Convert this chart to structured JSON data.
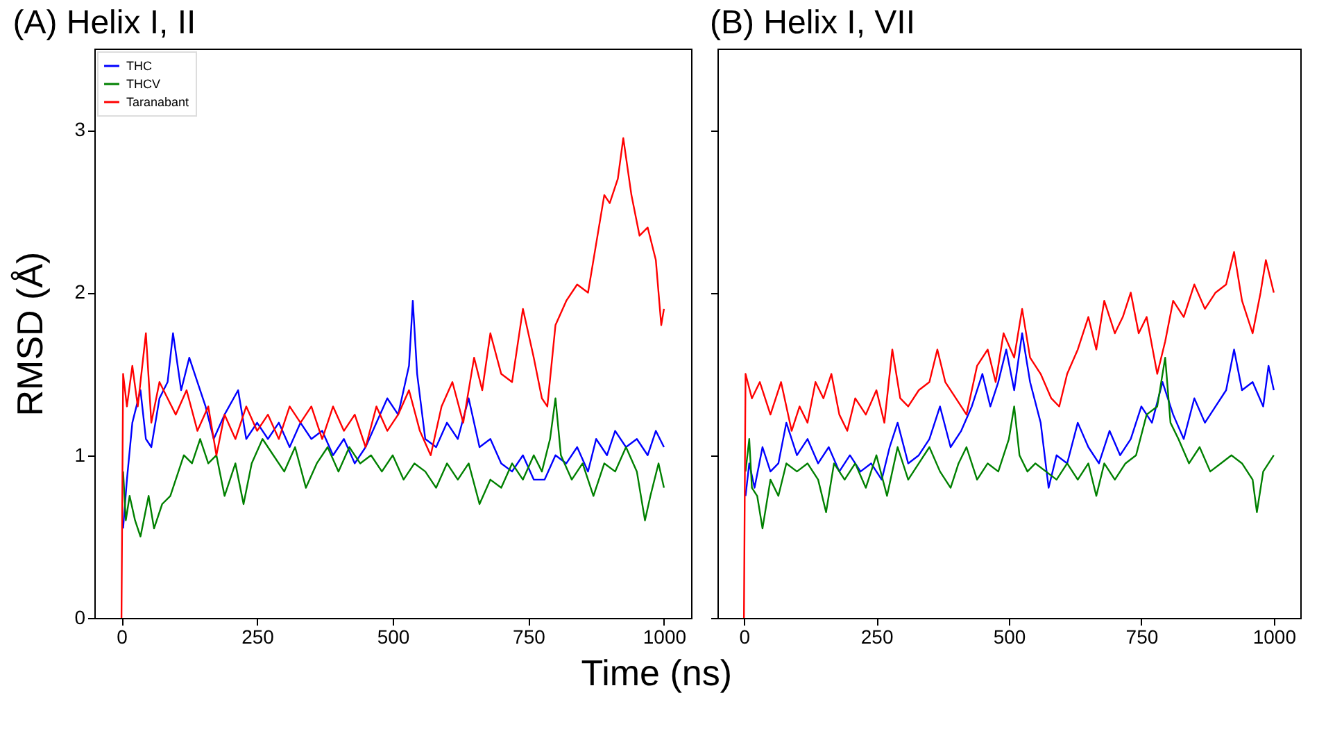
{
  "chart_data": [
    {
      "type": "line",
      "title": "(A) Helix I, II",
      "xlabel": "Time (ns)",
      "ylabel": "RMSD (Å)",
      "xlim": [
        -50,
        1050
      ],
      "ylim": [
        0,
        3.5
      ],
      "xticks": [
        0,
        250,
        500,
        750,
        1000
      ],
      "yticks": [
        0,
        1,
        2,
        3
      ],
      "legend": "top left",
      "series": [
        {
          "name": "THC",
          "color": "#0000ff",
          "x": [
            3,
            10,
            20,
            35,
            45,
            55,
            70,
            85,
            95,
            110,
            125,
            140,
            155,
            170,
            190,
            215,
            230,
            250,
            270,
            290,
            310,
            330,
            350,
            370,
            390,
            410,
            430,
            450,
            470,
            490,
            510,
            530,
            537,
            545,
            560,
            580,
            600,
            620,
            640,
            660,
            680,
            700,
            720,
            740,
            760,
            780,
            800,
            820,
            840,
            860,
            875,
            895,
            910,
            930,
            950,
            970,
            985,
            1000
          ],
          "values": [
            0.55,
            0.85,
            1.2,
            1.4,
            1.1,
            1.05,
            1.35,
            1.45,
            1.75,
            1.4,
            1.6,
            1.45,
            1.3,
            1.1,
            1.25,
            1.4,
            1.1,
            1.2,
            1.1,
            1.2,
            1.05,
            1.2,
            1.1,
            1.15,
            1.0,
            1.1,
            0.95,
            1.05,
            1.2,
            1.35,
            1.25,
            1.55,
            1.95,
            1.5,
            1.1,
            1.05,
            1.2,
            1.1,
            1.35,
            1.05,
            1.1,
            0.95,
            0.9,
            1.0,
            0.85,
            0.85,
            1.0,
            0.95,
            1.05,
            0.9,
            1.1,
            1.0,
            1.15,
            1.05,
            1.1,
            1.0,
            1.15,
            1.05
          ]
        },
        {
          "name": "THCV",
          "color": "#008000",
          "x": [
            3,
            8,
            15,
            25,
            35,
            50,
            60,
            75,
            90,
            100,
            115,
            130,
            145,
            160,
            175,
            190,
            210,
            225,
            240,
            260,
            280,
            300,
            320,
            340,
            360,
            380,
            400,
            420,
            440,
            460,
            480,
            500,
            520,
            540,
            560,
            580,
            600,
            620,
            640,
            660,
            680,
            700,
            720,
            740,
            760,
            775,
            790,
            800,
            810,
            830,
            850,
            870,
            890,
            910,
            930,
            950,
            965,
            975,
            990,
            1000
          ],
          "values": [
            0.9,
            0.6,
            0.75,
            0.6,
            0.5,
            0.75,
            0.55,
            0.7,
            0.75,
            0.85,
            1.0,
            0.95,
            1.1,
            0.95,
            1.0,
            0.75,
            0.95,
            0.7,
            0.95,
            1.1,
            1.0,
            0.9,
            1.05,
            0.8,
            0.95,
            1.05,
            0.9,
            1.05,
            0.95,
            1.0,
            0.9,
            1.0,
            0.85,
            0.95,
            0.9,
            0.8,
            0.95,
            0.85,
            0.95,
            0.7,
            0.85,
            0.8,
            0.95,
            0.85,
            1.0,
            0.9,
            1.1,
            1.35,
            1.0,
            0.85,
            0.95,
            0.75,
            0.95,
            0.9,
            1.05,
            0.9,
            0.6,
            0.75,
            0.95,
            0.8
          ]
        },
        {
          "name": "Taranabant",
          "color": "#ff0000",
          "x": [
            0,
            3,
            10,
            20,
            30,
            45,
            55,
            70,
            85,
            100,
            120,
            140,
            160,
            175,
            190,
            210,
            230,
            250,
            270,
            290,
            310,
            330,
            350,
            370,
            390,
            410,
            430,
            450,
            470,
            490,
            510,
            530,
            550,
            570,
            590,
            610,
            630,
            650,
            665,
            680,
            700,
            720,
            740,
            760,
            775,
            785,
            800,
            820,
            840,
            860,
            875,
            890,
            900,
            915,
            925,
            940,
            955,
            970,
            985,
            995,
            1000
          ],
          "values": [
            0,
            1.5,
            1.3,
            1.55,
            1.3,
            1.75,
            1.2,
            1.45,
            1.35,
            1.25,
            1.4,
            1.15,
            1.3,
            1.0,
            1.25,
            1.1,
            1.3,
            1.15,
            1.25,
            1.1,
            1.3,
            1.2,
            1.3,
            1.1,
            1.3,
            1.15,
            1.25,
            1.05,
            1.3,
            1.15,
            1.25,
            1.4,
            1.15,
            1.0,
            1.3,
            1.45,
            1.2,
            1.6,
            1.4,
            1.75,
            1.5,
            1.45,
            1.9,
            1.6,
            1.35,
            1.3,
            1.8,
            1.95,
            2.05,
            2.0,
            2.3,
            2.6,
            2.55,
            2.7,
            2.95,
            2.6,
            2.35,
            2.4,
            2.2,
            1.8,
            1.9
          ]
        }
      ]
    },
    {
      "type": "line",
      "title": "(B) Helix I, VII",
      "xlim": [
        -50,
        1050
      ],
      "ylim": [
        0,
        3.5
      ],
      "xticks": [
        0,
        250,
        500,
        750,
        1000
      ],
      "yticks": [
        0,
        1,
        2,
        3
      ],
      "tick_labels": "x",
      "series": [
        {
          "color": "#0000ff",
          "x": [
            3,
            10,
            20,
            35,
            50,
            65,
            80,
            100,
            120,
            140,
            160,
            180,
            200,
            220,
            240,
            260,
            275,
            290,
            310,
            330,
            350,
            370,
            390,
            410,
            430,
            450,
            465,
            480,
            495,
            510,
            525,
            540,
            560,
            575,
            590,
            610,
            630,
            650,
            670,
            690,
            710,
            730,
            750,
            770,
            790,
            810,
            830,
            850,
            870,
            890,
            910,
            925,
            940,
            960,
            980,
            990,
            1000
          ],
          "values": [
            0.75,
            0.95,
            0.8,
            1.05,
            0.9,
            0.95,
            1.2,
            1.0,
            1.1,
            0.95,
            1.05,
            0.9,
            1.0,
            0.9,
            0.95,
            0.85,
            1.05,
            1.2,
            0.95,
            1.0,
            1.1,
            1.3,
            1.05,
            1.15,
            1.3,
            1.5,
            1.3,
            1.45,
            1.65,
            1.4,
            1.75,
            1.45,
            1.2,
            0.8,
            1.0,
            0.95,
            1.2,
            1.05,
            0.95,
            1.15,
            1.0,
            1.1,
            1.3,
            1.2,
            1.45,
            1.25,
            1.1,
            1.35,
            1.2,
            1.3,
            1.4,
            1.65,
            1.4,
            1.45,
            1.3,
            1.55,
            1.4
          ]
        },
        {
          "color": "#008000",
          "x": [
            3,
            10,
            15,
            25,
            35,
            50,
            65,
            80,
            100,
            120,
            140,
            155,
            170,
            190,
            210,
            230,
            250,
            270,
            290,
            310,
            330,
            350,
            370,
            390,
            405,
            420,
            440,
            460,
            480,
            500,
            510,
            520,
            535,
            550,
            570,
            590,
            610,
            630,
            650,
            665,
            680,
            700,
            720,
            740,
            760,
            780,
            795,
            805,
            820,
            840,
            860,
            880,
            900,
            920,
            940,
            960,
            968,
            980,
            1000
          ],
          "values": [
            0.9,
            1.1,
            0.8,
            0.75,
            0.55,
            0.85,
            0.75,
            0.95,
            0.9,
            0.95,
            0.85,
            0.65,
            0.95,
            0.85,
            0.95,
            0.8,
            1.0,
            0.75,
            1.05,
            0.85,
            0.95,
            1.05,
            0.9,
            0.8,
            0.95,
            1.05,
            0.85,
            0.95,
            0.9,
            1.1,
            1.3,
            1.0,
            0.9,
            0.95,
            0.9,
            0.85,
            0.95,
            0.85,
            0.95,
            0.75,
            0.95,
            0.85,
            0.95,
            1.0,
            1.25,
            1.3,
            1.6,
            1.2,
            1.1,
            0.95,
            1.05,
            0.9,
            0.95,
            1.0,
            0.95,
            0.85,
            0.65,
            0.9,
            1.0
          ]
        },
        {
          "color": "#ff0000",
          "x": [
            0,
            3,
            15,
            30,
            50,
            70,
            90,
            105,
            120,
            135,
            150,
            165,
            180,
            195,
            210,
            230,
            250,
            265,
            280,
            295,
            310,
            330,
            350,
            365,
            380,
            400,
            420,
            440,
            460,
            475,
            490,
            510,
            525,
            540,
            560,
            580,
            595,
            610,
            630,
            650,
            665,
            680,
            700,
            715,
            730,
            745,
            760,
            780,
            795,
            810,
            830,
            850,
            870,
            890,
            910,
            925,
            940,
            960,
            975,
            985,
            1000
          ],
          "values": [
            0,
            1.5,
            1.35,
            1.45,
            1.25,
            1.45,
            1.15,
            1.3,
            1.2,
            1.45,
            1.35,
            1.5,
            1.25,
            1.15,
            1.35,
            1.25,
            1.4,
            1.2,
            1.65,
            1.35,
            1.3,
            1.4,
            1.45,
            1.65,
            1.45,
            1.35,
            1.25,
            1.55,
            1.65,
            1.45,
            1.75,
            1.6,
            1.9,
            1.6,
            1.5,
            1.35,
            1.3,
            1.5,
            1.65,
            1.85,
            1.65,
            1.95,
            1.75,
            1.85,
            2.0,
            1.75,
            1.85,
            1.5,
            1.7,
            1.95,
            1.85,
            2.05,
            1.9,
            2.0,
            2.05,
            2.25,
            1.95,
            1.75,
            2.0,
            2.2,
            2.0
          ]
        }
      ]
    }
  ]
}
